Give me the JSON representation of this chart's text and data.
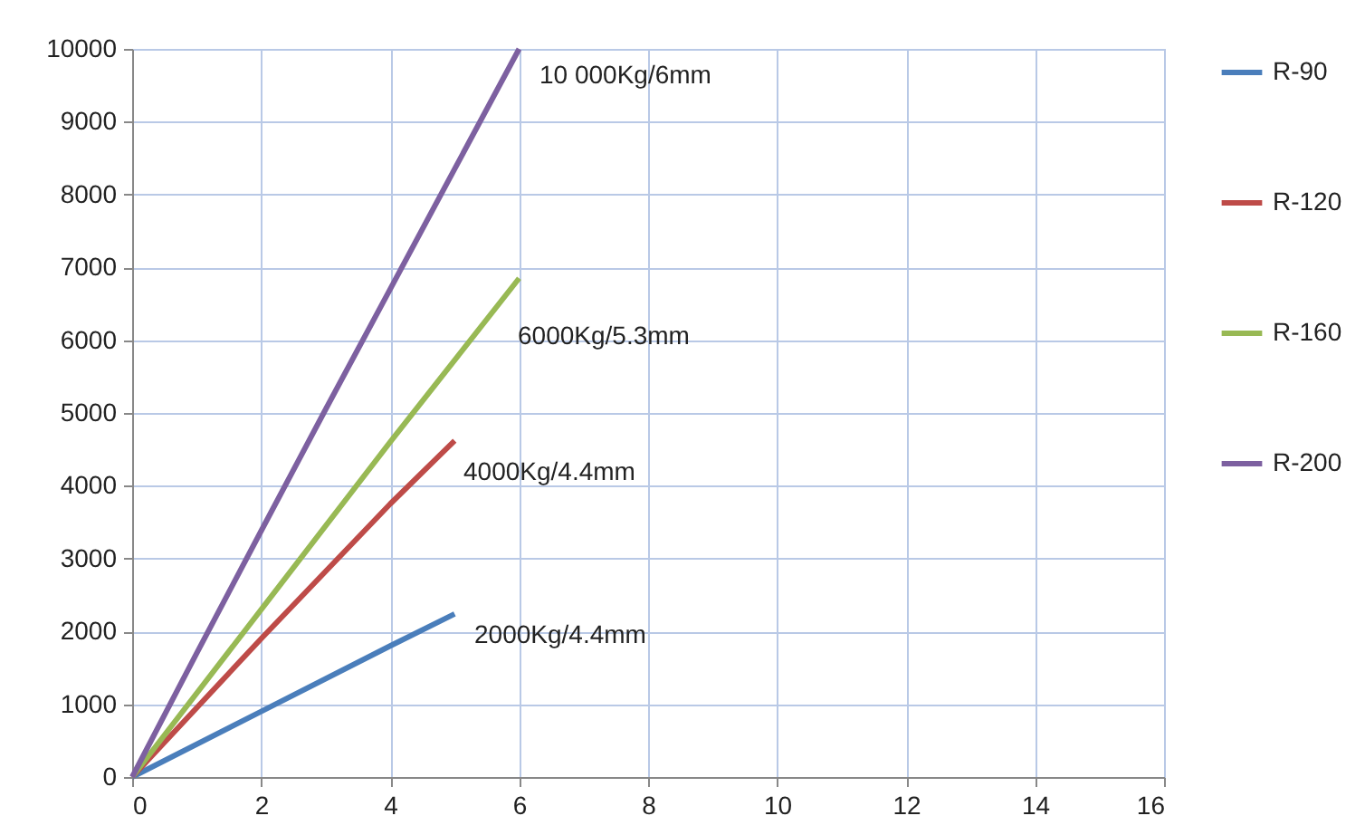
{
  "chart_data": {
    "type": "line",
    "xlim": [
      0,
      16
    ],
    "xticks": [
      0,
      2,
      4,
      6,
      8,
      10,
      12,
      14,
      16
    ],
    "ylim": [
      0,
      10000
    ],
    "yticks": [
      0,
      1000,
      2000,
      3000,
      4000,
      5000,
      6000,
      7000,
      8000,
      9000,
      10000
    ],
    "grid": true,
    "legend": "right",
    "marker": "none",
    "line_style": "solid",
    "series": [
      {
        "name": "R-90",
        "color": "#4a7ebb",
        "x": [
          0,
          2,
          4,
          5
        ],
        "values": [
          0,
          900,
          1800,
          2240
        ]
      },
      {
        "name": "R-120",
        "color": "#be4b48",
        "x": [
          0,
          2,
          4,
          5
        ],
        "values": [
          0,
          1900,
          3750,
          4620
        ]
      },
      {
        "name": "R-160",
        "color": "#98b954",
        "x": [
          0,
          2,
          4,
          6
        ],
        "values": [
          0,
          2300,
          4600,
          6850
        ]
      },
      {
        "name": "R-200",
        "color": "#7d60a0",
        "x": [
          0,
          1,
          2,
          3,
          4,
          5,
          6
        ],
        "values": [
          0,
          1700,
          3380,
          5050,
          6700,
          8350,
          10000
        ]
      }
    ],
    "annotations": [
      "10 000Kg/6mm",
      "6000Kg/5.3mm",
      "4000Kg/4.4mm",
      "2000Kg/4.4mm"
    ]
  }
}
